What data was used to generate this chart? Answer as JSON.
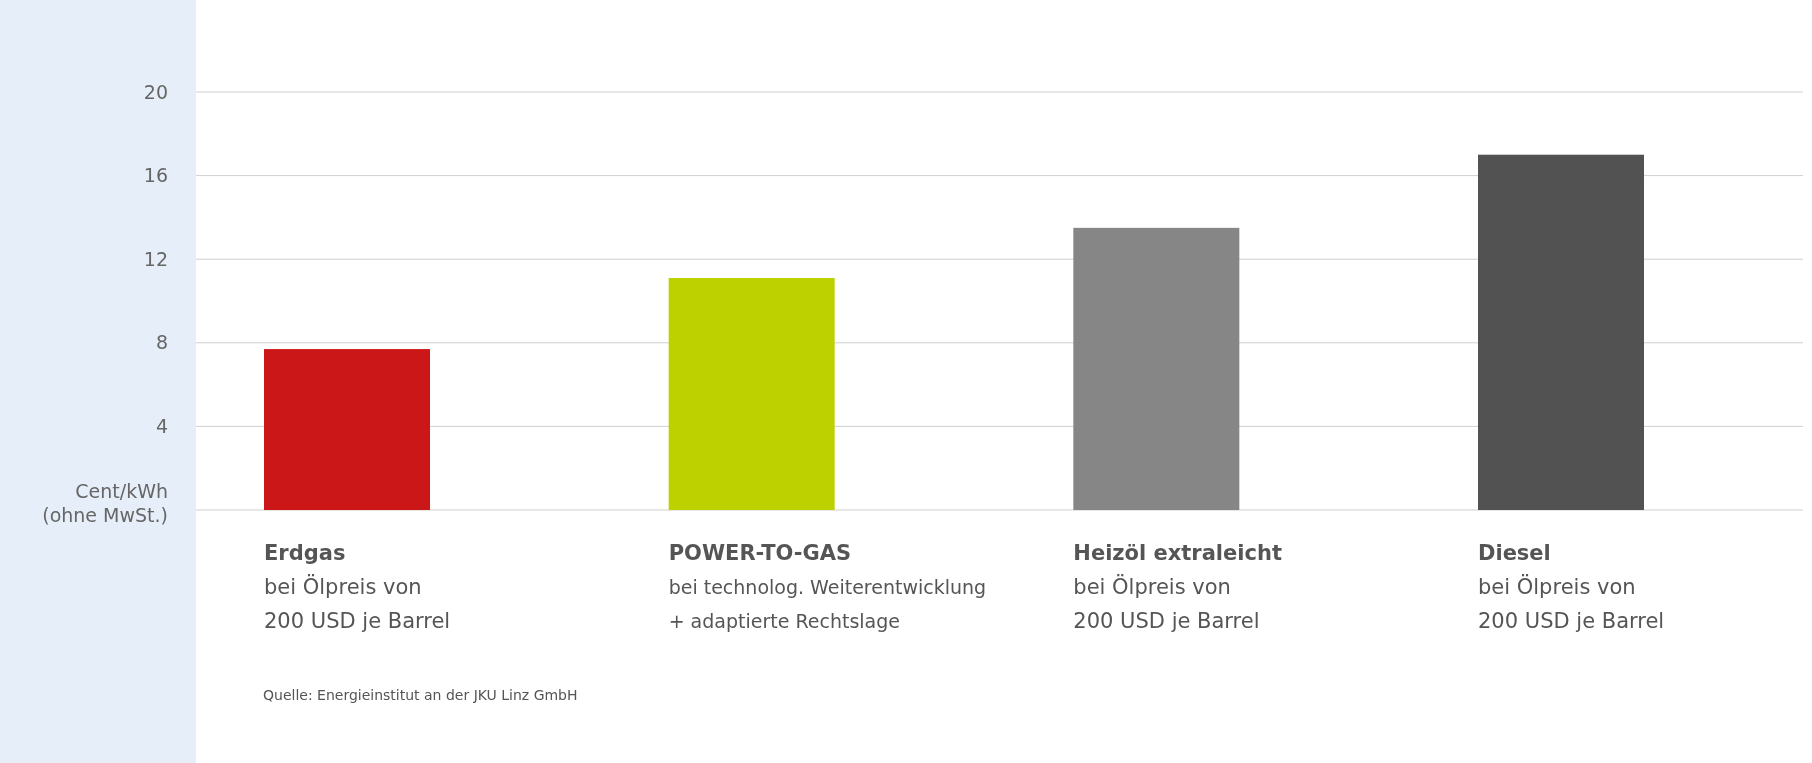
{
  "chart_data": {
    "type": "bar",
    "categories": [
      "Erdgas\nbei Ölpreis von\n200 USD je Barrel",
      "POWER-TO-GAS\nbei technolog. Weiterentwicklung\n+ adaptierte Rechtslage",
      "Heizöl extraleicht\nbei Ölpreis von\n200 USD je Barrel",
      "Diesel\nbei Ölpreis von\n200 USD je Barrel"
    ],
    "values": [
      7.7,
      11.1,
      13.5,
      17.0
    ],
    "colors": [
      "#cc1719",
      "#bdd100",
      "#868686",
      "#525252"
    ],
    "ylabel": "Cent/kWh\n(ohne MwSt.)",
    "ylim": [
      0,
      20
    ],
    "yticks": [
      4,
      8,
      12,
      16,
      20
    ],
    "grid": "y",
    "annotations": [
      "Quelle: Energieinstitut an der JKU Linz GmbH"
    ]
  }
}
